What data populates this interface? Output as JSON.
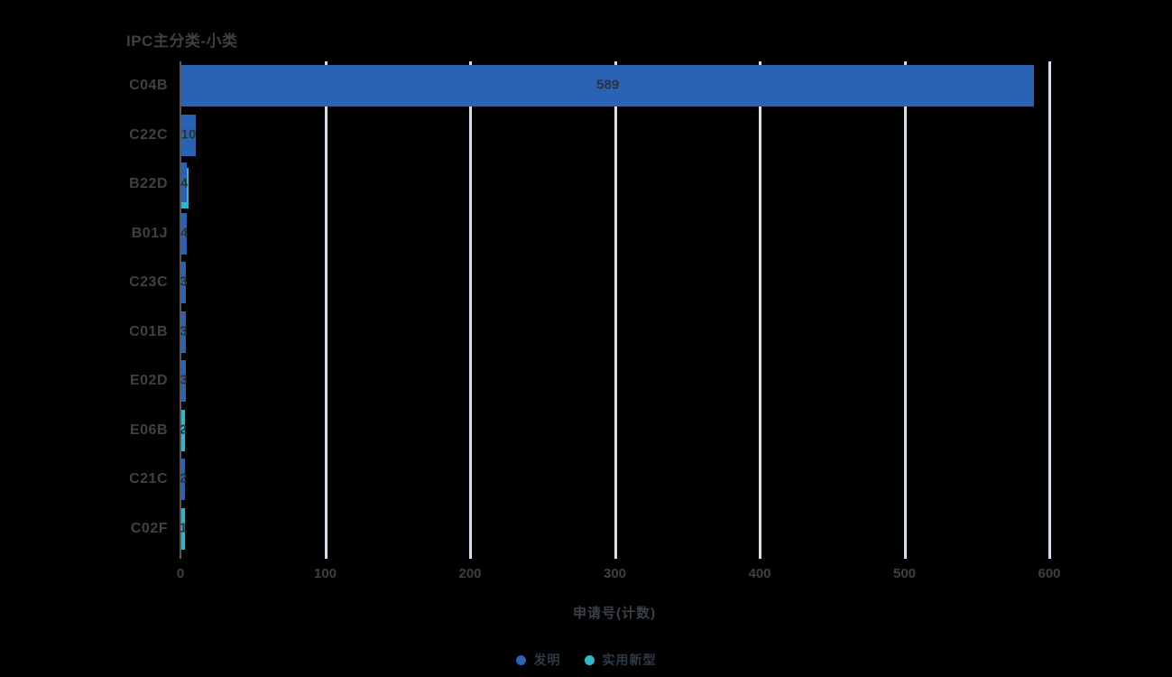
{
  "title": "IPC主分类-小类",
  "colors": {
    "background": "#000000",
    "invention_blue": "#2a62b5",
    "utility_cyan": "#33b5cb",
    "gridline": "#d6deeb",
    "axis_line": "#56595c",
    "text_dark": "#3d4145",
    "value_label": "#2d3338"
  },
  "chart_data": {
    "type": "bar",
    "orientation": "horizontal",
    "title": "IPC主分类-小类",
    "xlabel": "申请号(计数)",
    "ylabel": "IPC主分类-小类",
    "xlim": [
      0,
      600
    ],
    "xticks": [
      0,
      100,
      200,
      300,
      400,
      500,
      600
    ],
    "grid": true,
    "legend_position": "bottom-center",
    "categories": [
      "C04B",
      "C22C",
      "B22D",
      "B01J",
      "C23C",
      "C01B",
      "E02D",
      "E06B",
      "C21C",
      "C02F"
    ],
    "series": [
      {
        "key": "invention",
        "name": "发明",
        "color": "#2a62b5",
        "values": [
          589,
          10,
          4,
          4,
          3,
          3,
          3,
          0,
          2,
          0
        ]
      },
      {
        "key": "utility",
        "name": "实用新型",
        "color": "#33b5cb",
        "values": [
          0,
          0,
          4,
          0,
          0,
          0,
          0,
          2,
          0,
          1
        ]
      }
    ],
    "bar_labels": [
      "589",
      "10",
      "4",
      "4",
      "3",
      "3",
      "3",
      "2",
      "2",
      "1"
    ]
  }
}
